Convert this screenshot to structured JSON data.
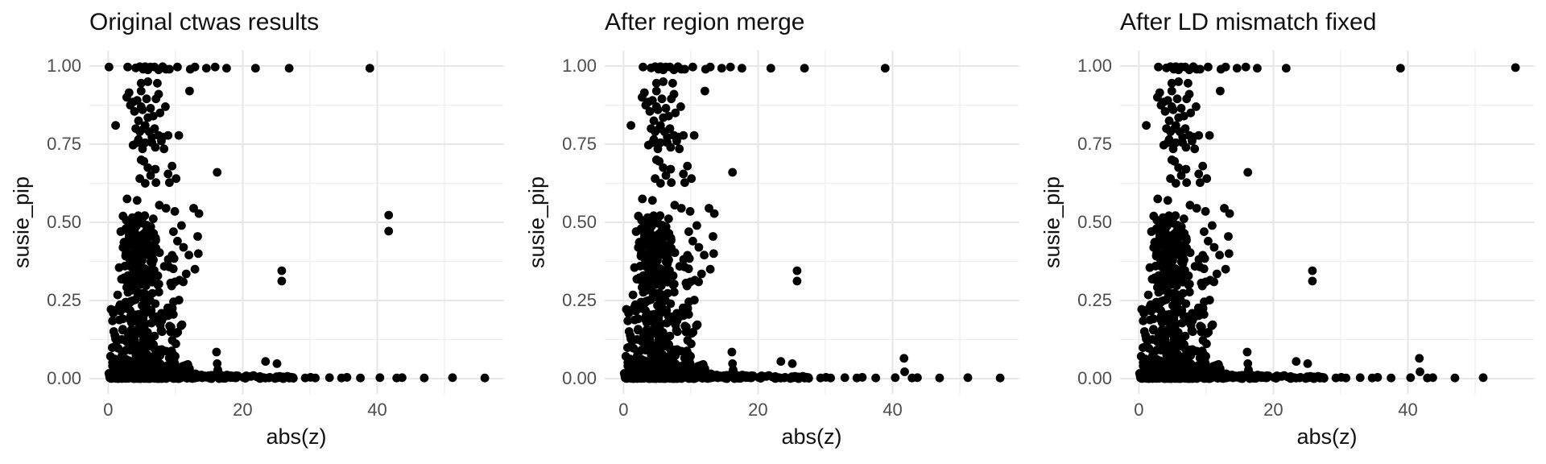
{
  "figure": {
    "background": "#ffffff",
    "point_color": "#000000",
    "grid_major_color": "#e7e7e7",
    "grid_minor_color": "#efefef",
    "tick_label_color": "#4d4d4d",
    "text_color": "#111111"
  },
  "chart_data": [
    {
      "type": "scatter",
      "title": "Original ctwas results",
      "xlabel": "abs(z)",
      "ylabel": "susie_pip",
      "xlim": [
        -2.8,
        58.8
      ],
      "ylim": [
        -0.05,
        1.05
      ],
      "grid": true,
      "x_ticks": {
        "values": [
          0,
          20,
          40
        ],
        "labels": [
          "0",
          "20",
          "40"
        ]
      },
      "x_minor": [
        10,
        30,
        50
      ],
      "y_ticks": {
        "values": [
          0,
          0.25,
          0.5,
          0.75,
          1.0
        ],
        "labels": [
          "0.00",
          "0.25",
          "0.50",
          "0.75",
          "1.00"
        ]
      },
      "y_minor": [
        0.125,
        0.375,
        0.625,
        0.875
      ],
      "extra_points": [
        [
          0.12,
          0.997
        ],
        [
          26.9,
          0.993
        ],
        [
          41.7,
          0.523
        ],
        [
          41.7,
          0.472
        ],
        [
          56.0,
          0.002
        ]
      ]
    },
    {
      "type": "scatter",
      "title": "After region merge",
      "xlabel": "abs(z)",
      "ylabel": "susie_pip",
      "xlim": [
        -2.8,
        58.8
      ],
      "ylim": [
        -0.05,
        1.05
      ],
      "grid": true,
      "x_ticks": {
        "values": [
          0,
          20,
          40
        ],
        "labels": [
          "0",
          "20",
          "40"
        ]
      },
      "x_minor": [
        10,
        30,
        50
      ],
      "y_ticks": {
        "values": [
          0,
          0.25,
          0.5,
          0.75,
          1.0
        ],
        "labels": [
          "0.00",
          "0.25",
          "0.50",
          "0.75",
          "1.00"
        ]
      },
      "y_minor": [
        0.125,
        0.375,
        0.625,
        0.875
      ],
      "extra_points": [
        [
          26.9,
          0.993
        ],
        [
          41.7,
          0.065
        ],
        [
          41.8,
          0.022
        ],
        [
          56.0,
          0.002
        ]
      ]
    },
    {
      "type": "scatter",
      "title": "After LD mismatch fixed",
      "xlabel": "abs(z)",
      "ylabel": "susie_pip",
      "xlim": [
        -2.8,
        58.8
      ],
      "ylim": [
        -0.05,
        1.05
      ],
      "grid": true,
      "x_ticks": {
        "values": [
          0,
          20,
          40
        ],
        "labels": [
          "0",
          "20",
          "40"
        ]
      },
      "x_minor": [
        10,
        30,
        50
      ],
      "y_ticks": {
        "values": [
          0,
          0.25,
          0.5,
          0.75,
          1.0
        ],
        "labels": [
          "0.00",
          "0.25",
          "0.50",
          "0.75",
          "1.00"
        ]
      },
      "y_minor": [
        0.125,
        0.375,
        0.625,
        0.875
      ],
      "extra_points": [
        [
          56.0,
          0.995
        ],
        [
          41.7,
          0.065
        ],
        [
          41.8,
          0.022
        ]
      ]
    }
  ],
  "shared_scatter": {
    "note": "points present in all three panels",
    "structural_points": [
      [
        2.9,
        0.997
      ],
      [
        4.1,
        0.994
      ],
      [
        4.7,
        0.998
      ],
      [
        5.2,
        0.99
      ],
      [
        5.5,
        0.998
      ],
      [
        5.9,
        0.988
      ],
      [
        6.3,
        0.997
      ],
      [
        6.9,
        0.997
      ],
      [
        7.5,
        0.988
      ],
      [
        8.1,
        0.998
      ],
      [
        8.6,
        0.99
      ],
      [
        9.1,
        0.99
      ],
      [
        10.3,
        0.997
      ],
      [
        12.2,
        0.99
      ],
      [
        12.9,
        0.997
      ],
      [
        14.6,
        0.993
      ],
      [
        15.9,
        0.997
      ],
      [
        17.6,
        0.993
      ],
      [
        21.9,
        0.993
      ],
      [
        38.9,
        0.993
      ],
      [
        1.1,
        0.81
      ],
      [
        2.75,
        0.9
      ],
      [
        3.1,
        0.915
      ],
      [
        3.7,
        0.885
      ],
      [
        4.3,
        0.89
      ],
      [
        4.9,
        0.945
      ],
      [
        5.9,
        0.95
      ],
      [
        7.3,
        0.945
      ],
      [
        4.9,
        0.92
      ],
      [
        7.5,
        0.91
      ],
      [
        5.7,
        0.895
      ],
      [
        7.1,
        0.895
      ],
      [
        8.5,
        0.87
      ],
      [
        12.1,
        0.92
      ],
      [
        4.9,
        0.87
      ],
      [
        3.3,
        0.875
      ],
      [
        4.5,
        0.765
      ],
      [
        5.5,
        0.755
      ],
      [
        6.5,
        0.773
      ],
      [
        7.5,
        0.778
      ],
      [
        3.7,
        0.747
      ],
      [
        5.1,
        0.735
      ],
      [
        7.0,
        0.74
      ],
      [
        8.1,
        0.773
      ],
      [
        8.9,
        0.778
      ],
      [
        10.5,
        0.778
      ],
      [
        4.1,
        0.8
      ],
      [
        5.3,
        0.8
      ],
      [
        6.1,
        0.79
      ],
      [
        6.9,
        0.8
      ],
      [
        4.5,
        0.825
      ],
      [
        5.9,
        0.835
      ],
      [
        6.7,
        0.84
      ],
      [
        3.9,
        0.855
      ],
      [
        5.1,
        0.86
      ],
      [
        6.3,
        0.865
      ],
      [
        7.7,
        0.85
      ],
      [
        4.3,
        0.755
      ],
      [
        4.7,
        0.79
      ],
      [
        5.5,
        0.81
      ],
      [
        6.5,
        0.755
      ],
      [
        7.9,
        0.76
      ],
      [
        8.3,
        0.735
      ],
      [
        4.9,
        0.7
      ],
      [
        5.3,
        0.695
      ],
      [
        5.9,
        0.675
      ],
      [
        7.0,
        0.67
      ],
      [
        4.7,
        0.64
      ],
      [
        9.5,
        0.68
      ],
      [
        9.1,
        0.627
      ],
      [
        7.1,
        0.627
      ],
      [
        6.3,
        0.65
      ],
      [
        5.5,
        0.625
      ],
      [
        16.2,
        0.66
      ],
      [
        8.9,
        0.655
      ],
      [
        10.1,
        0.64
      ],
      [
        2.8,
        0.575
      ],
      [
        4.3,
        0.57
      ],
      [
        7.6,
        0.555
      ],
      [
        8.6,
        0.545
      ],
      [
        9.9,
        0.535
      ],
      [
        12.7,
        0.545
      ],
      [
        13.5,
        0.528
      ],
      [
        2.2,
        0.52
      ],
      [
        10.3,
        0.44
      ],
      [
        11.2,
        0.42
      ],
      [
        12.0,
        0.395
      ],
      [
        12.9,
        0.35
      ],
      [
        11.6,
        0.335
      ],
      [
        10.6,
        0.315
      ],
      [
        13.3,
        0.455
      ],
      [
        13.4,
        0.4
      ],
      [
        9.7,
        0.47
      ],
      [
        10.9,
        0.49
      ],
      [
        16.1,
        0.085
      ],
      [
        16.2,
        0.048
      ],
      [
        16.3,
        0.028
      ],
      [
        23.4,
        0.055
      ],
      [
        25.1,
        0.048
      ],
      [
        25.8,
        0.345
      ],
      [
        25.8,
        0.312
      ],
      [
        21.6,
        0.01
      ],
      [
        29.3,
        0.002
      ],
      [
        30.1,
        0.004
      ],
      [
        30.8,
        0.002
      ],
      [
        32.9,
        0.003
      ],
      [
        34.7,
        0.002
      ],
      [
        35.5,
        0.004
      ],
      [
        37.5,
        0.002
      ],
      [
        40.4,
        0.003
      ],
      [
        42.9,
        0.002
      ],
      [
        43.7,
        0.003
      ],
      [
        47.0,
        0.002
      ],
      [
        51.2,
        0.003
      ]
    ],
    "density_clusters": [
      {
        "name": "comet-core",
        "seed": 101,
        "n": 240,
        "x": {
          "type": "gauss",
          "mean": 4.5,
          "sd": 1.25,
          "min": 1.4,
          "max": 8.3
        },
        "y": {
          "type": "pow",
          "exp": 1.9,
          "scale": 0.5,
          "base": 0.0
        }
      },
      {
        "name": "comet-right",
        "seed": 202,
        "n": 100,
        "x": {
          "type": "gauss",
          "mean": 8.2,
          "sd": 1.7,
          "min": 5.0,
          "max": 12.8
        },
        "y": {
          "type": "pow",
          "exp": 2.2,
          "scale": 0.4,
          "base": 0.0
        }
      },
      {
        "name": "left-edge",
        "seed": 303,
        "n": 40,
        "x": {
          "type": "uniform",
          "min": 0.3,
          "max": 2.3
        },
        "y": {
          "type": "pow",
          "exp": 2.0,
          "scale": 0.24,
          "base": 0.0
        }
      },
      {
        "name": "bottom-strip",
        "seed": 404,
        "n": 230,
        "x": {
          "type": "uniform",
          "min": 0.05,
          "max": 13.0
        },
        "y": {
          "type": "uniform",
          "min": 0.0,
          "max": 0.018
        }
      },
      {
        "name": "bottom-strip-2",
        "seed": 505,
        "n": 60,
        "x": {
          "type": "uniform",
          "min": 0.4,
          "max": 12.5
        },
        "y": {
          "type": "uniform",
          "min": 0.018,
          "max": 0.05
        }
      },
      {
        "name": "strip-tail",
        "seed": 606,
        "n": 48,
        "x": {
          "type": "uniform",
          "min": 12.8,
          "max": 21.3
        },
        "y": {
          "type": "uniform",
          "min": 0.0,
          "max": 0.012
        }
      },
      {
        "name": "strip-tail-2",
        "seed": 707,
        "n": 22,
        "x": {
          "type": "uniform",
          "min": 21.2,
          "max": 27.6
        },
        "y": {
          "type": "uniform",
          "min": 0.0,
          "max": 0.008
        }
      },
      {
        "name": "mid-column",
        "seed": 808,
        "n": 85,
        "x": {
          "type": "gauss",
          "mean": 5.0,
          "sd": 1.15,
          "min": 2.6,
          "max": 8.6
        },
        "y": {
          "type": "uniform",
          "min": 0.3,
          "max": 0.53
        }
      }
    ]
  }
}
